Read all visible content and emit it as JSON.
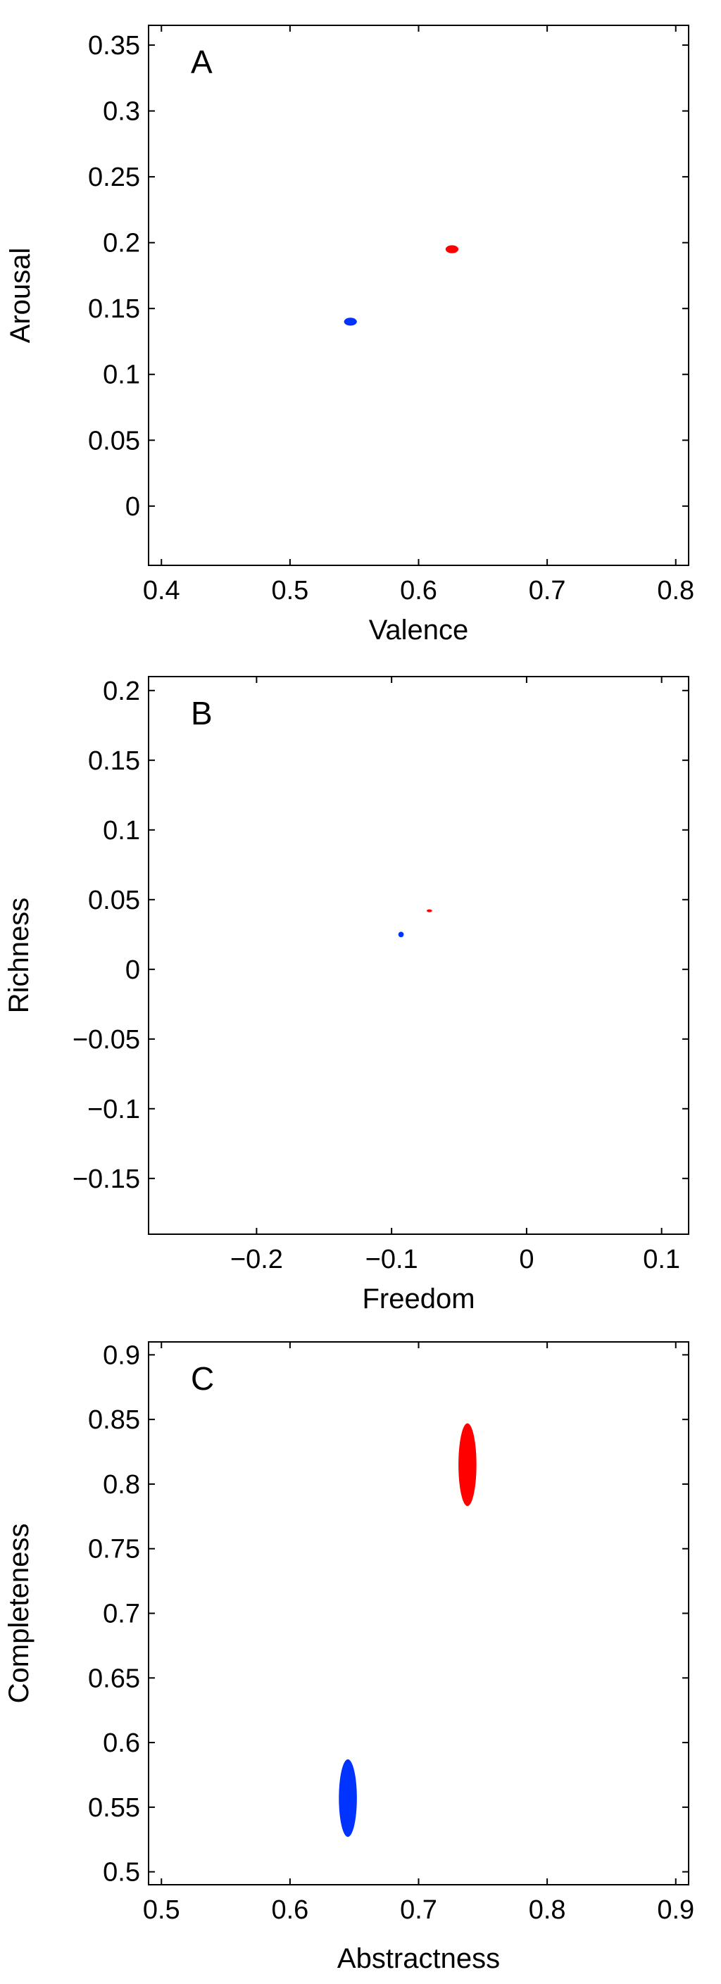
{
  "chart_data": [
    {
      "type": "scatter",
      "panel_label": "A",
      "xlabel": "Valence",
      "ylabel": "Arousal",
      "xlim": [
        0.39,
        0.81
      ],
      "ylim": [
        -0.045,
        0.365
      ],
      "xticks": [
        0.4,
        0.5,
        0.6,
        0.7,
        0.8
      ],
      "xtick_labels": [
        "0.4",
        "0.5",
        "0.6",
        "0.7",
        "0.8"
      ],
      "yticks": [
        0,
        0.05,
        0.1,
        0.15,
        0.2,
        0.25,
        0.3,
        0.35
      ],
      "ytick_labels": [
        "0",
        "0.05",
        "0.1",
        "0.15",
        "0.2",
        "0.25",
        "0.3",
        "0.35"
      ],
      "grid": false,
      "series": [
        {
          "color": "#0033ff",
          "x": 0.547,
          "y": 0.14,
          "x_spread": 0.005,
          "y_spread": 0.003
        },
        {
          "color": "#ff0000",
          "x": 0.626,
          "y": 0.195,
          "x_spread": 0.005,
          "y_spread": 0.003
        }
      ]
    },
    {
      "type": "scatter",
      "panel_label": "B",
      "xlabel": "Freedom",
      "ylabel": "Richness",
      "xlim": [
        -0.28,
        0.12
      ],
      "ylim": [
        -0.19,
        0.21
      ],
      "xticks": [
        -0.2,
        -0.1,
        0,
        0.1
      ],
      "xtick_labels": [
        "−0.2",
        "−0.1",
        "0",
        "0.1"
      ],
      "yticks": [
        -0.15,
        -0.1,
        -0.05,
        0,
        0.05,
        0.1,
        0.15,
        0.2
      ],
      "ytick_labels": [
        "−0.15",
        "−0.1",
        "−0.05",
        "0",
        "0.05",
        "0.1",
        "0.15",
        "0.2"
      ],
      "grid": false,
      "series": [
        {
          "color": "#0033ff",
          "x": -0.093,
          "y": 0.025,
          "x_spread": 0.002,
          "y_spread": 0.002
        },
        {
          "color": "#ff0000",
          "x": -0.072,
          "y": 0.042,
          "x_spread": 0.002,
          "y_spread": 0.0006
        }
      ]
    },
    {
      "type": "scatter",
      "panel_label": "C",
      "xlabel": "Abstractness",
      "ylabel": "Completeness",
      "xlim": [
        0.49,
        0.91
      ],
      "ylim": [
        0.49,
        0.91
      ],
      "xticks": [
        0.5,
        0.6,
        0.7,
        0.8,
        0.9
      ],
      "xtick_labels": [
        "0.5",
        "0.6",
        "0.7",
        "0.8",
        "0.9"
      ],
      "yticks": [
        0.5,
        0.55,
        0.6,
        0.65,
        0.7,
        0.75,
        0.8,
        0.85,
        0.9
      ],
      "ytick_labels": [
        "0.5",
        "0.55",
        "0.6",
        "0.65",
        "0.7",
        "0.75",
        "0.8",
        "0.85",
        "0.9"
      ],
      "grid": false,
      "series": [
        {
          "color": "#0033ff",
          "x": 0.645,
          "y": 0.557,
          "x_spread": 0.007,
          "y_spread": 0.03
        },
        {
          "color": "#ff0000",
          "x": 0.738,
          "y": 0.815,
          "x_spread": 0.007,
          "y_spread": 0.032
        }
      ]
    }
  ]
}
